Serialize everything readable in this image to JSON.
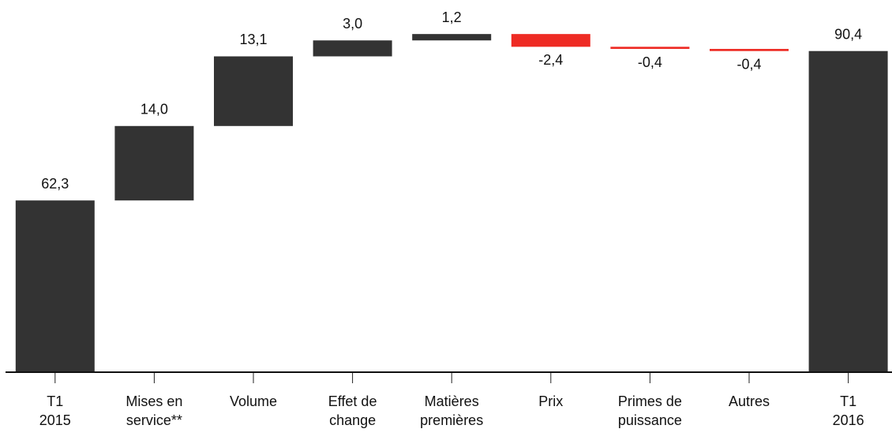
{
  "chart_data": {
    "type": "waterfall",
    "categories": [
      [
        "T1",
        "2015"
      ],
      [
        "Mises en",
        "service**"
      ],
      [
        "Volume"
      ],
      [
        "Effet de",
        "change"
      ],
      [
        "Matières",
        "premières"
      ],
      [
        "Prix"
      ],
      [
        "Primes de",
        "puissance"
      ],
      [
        "Autres"
      ],
      [
        "T1",
        "2016"
      ]
    ],
    "values": [
      62.3,
      14.0,
      13.1,
      3.0,
      1.2,
      -2.4,
      -0.4,
      -0.4,
      90.4
    ],
    "value_labels": [
      "62,3",
      "14,0",
      "13,1",
      "3,0",
      "1,2",
      "-2,4",
      "-0,4",
      "-0,4",
      "90,4"
    ],
    "totals": [
      true,
      false,
      false,
      false,
      false,
      false,
      false,
      false,
      true
    ],
    "color": "#333333",
    "negative_color": "#ee2b24",
    "ylim": [
      30,
      100
    ]
  }
}
